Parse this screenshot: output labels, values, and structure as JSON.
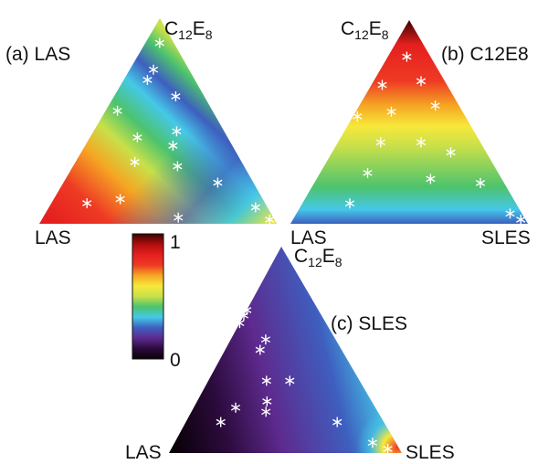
{
  "chart_data": [
    {
      "type": "heatmap",
      "panel": "(a)",
      "title": "LAS",
      "ternary_axes": [
        "LAS",
        "C12E8",
        "SLES"
      ],
      "labels": [
        {
          "base": "C",
          "sub": "12",
          "base2": "E",
          "sub2": "8"
        },
        {
          "text": "LAS"
        }
      ],
      "points": [
        [
          0.06,
          0.88,
          0.06
        ],
        [
          0.15,
          0.75,
          0.1
        ],
        [
          0.2,
          0.7,
          0.1
        ],
        [
          0.12,
          0.62,
          0.26
        ],
        [
          0.4,
          0.55,
          0.05
        ],
        [
          0.38,
          0.42,
          0.2
        ],
        [
          0.2,
          0.45,
          0.35
        ],
        [
          0.25,
          0.38,
          0.37
        ],
        [
          0.45,
          0.3,
          0.25
        ],
        [
          0.28,
          0.28,
          0.44
        ],
        [
          0.15,
          0.2,
          0.65
        ],
        [
          0.6,
          0.12,
          0.28
        ],
        [
          0.75,
          0.1,
          0.15
        ],
        [
          0.4,
          0.03,
          0.57
        ],
        [
          0.05,
          0.08,
          0.87
        ],
        [
          0.02,
          0.02,
          0.96
        ]
      ]
    },
    {
      "type": "heatmap",
      "panel": "(b)",
      "title": "C12E8",
      "ternary_axes": [
        "LAS",
        "C12E8",
        "SLES"
      ],
      "labels": [
        {
          "base": "C",
          "sub": "12",
          "base2": "E",
          "sub2": "8"
        },
        {
          "text": "LAS"
        },
        {
          "text": "SLES"
        }
      ],
      "points": [
        [
          0.1,
          0.82,
          0.08
        ],
        [
          0.3,
          0.75,
          0.05
        ],
        [
          0.1,
          0.7,
          0.2
        ],
        [
          0.5,
          0.58,
          0.02
        ],
        [
          0.3,
          0.55,
          0.15
        ],
        [
          0.1,
          0.58,
          0.32
        ],
        [
          0.42,
          0.4,
          0.18
        ],
        [
          0.25,
          0.4,
          0.35
        ],
        [
          0.15,
          0.35,
          0.5
        ],
        [
          0.55,
          0.25,
          0.2
        ],
        [
          0.3,
          0.22,
          0.48
        ],
        [
          0.1,
          0.2,
          0.7
        ],
        [
          0.7,
          0.1,
          0.2
        ],
        [
          0.05,
          0.05,
          0.9
        ],
        [
          0.02,
          0.02,
          0.96
        ]
      ]
    },
    {
      "type": "heatmap",
      "panel": "(c)",
      "title": "SLES",
      "ternary_axes": [
        "LAS",
        "C12E8",
        "SLES"
      ],
      "labels": [
        {
          "base": "C",
          "sub": "12",
          "base2": "E",
          "sub2": "8"
        },
        {
          "text": "LAS"
        },
        {
          "text": "SLES"
        }
      ],
      "points": [
        [
          0.4,
          0.8,
          0.0
        ],
        [
          0.32,
          0.72,
          0.0
        ],
        [
          0.4,
          0.68,
          0.0
        ],
        [
          0.3,
          0.55,
          0.15
        ],
        [
          0.35,
          0.5,
          0.15
        ],
        [
          0.3,
          0.35,
          0.35
        ],
        [
          0.4,
          0.35,
          0.25
        ],
        [
          0.45,
          0.25,
          0.3
        ],
        [
          0.6,
          0.22,
          0.18
        ],
        [
          0.48,
          0.2,
          0.32
        ],
        [
          0.7,
          0.15,
          0.15
        ],
        [
          0.2,
          0.15,
          0.65
        ],
        [
          0.1,
          0.05,
          0.85
        ],
        [
          0.05,
          0.02,
          0.93
        ]
      ]
    },
    {
      "type": "colorbar",
      "range": [
        0,
        1
      ],
      "tick_labels": [
        "1",
        "0"
      ],
      "colors": [
        "#0a0008",
        "#2b0b3c",
        "#5e2a8e",
        "#3e5fbf",
        "#45c8e8",
        "#4cc36e",
        "#c8e04a",
        "#f7e83a",
        "#f5a623",
        "#ee3b24",
        "#e51f1f",
        "#b00e0e",
        "#3a0202"
      ]
    }
  ]
}
